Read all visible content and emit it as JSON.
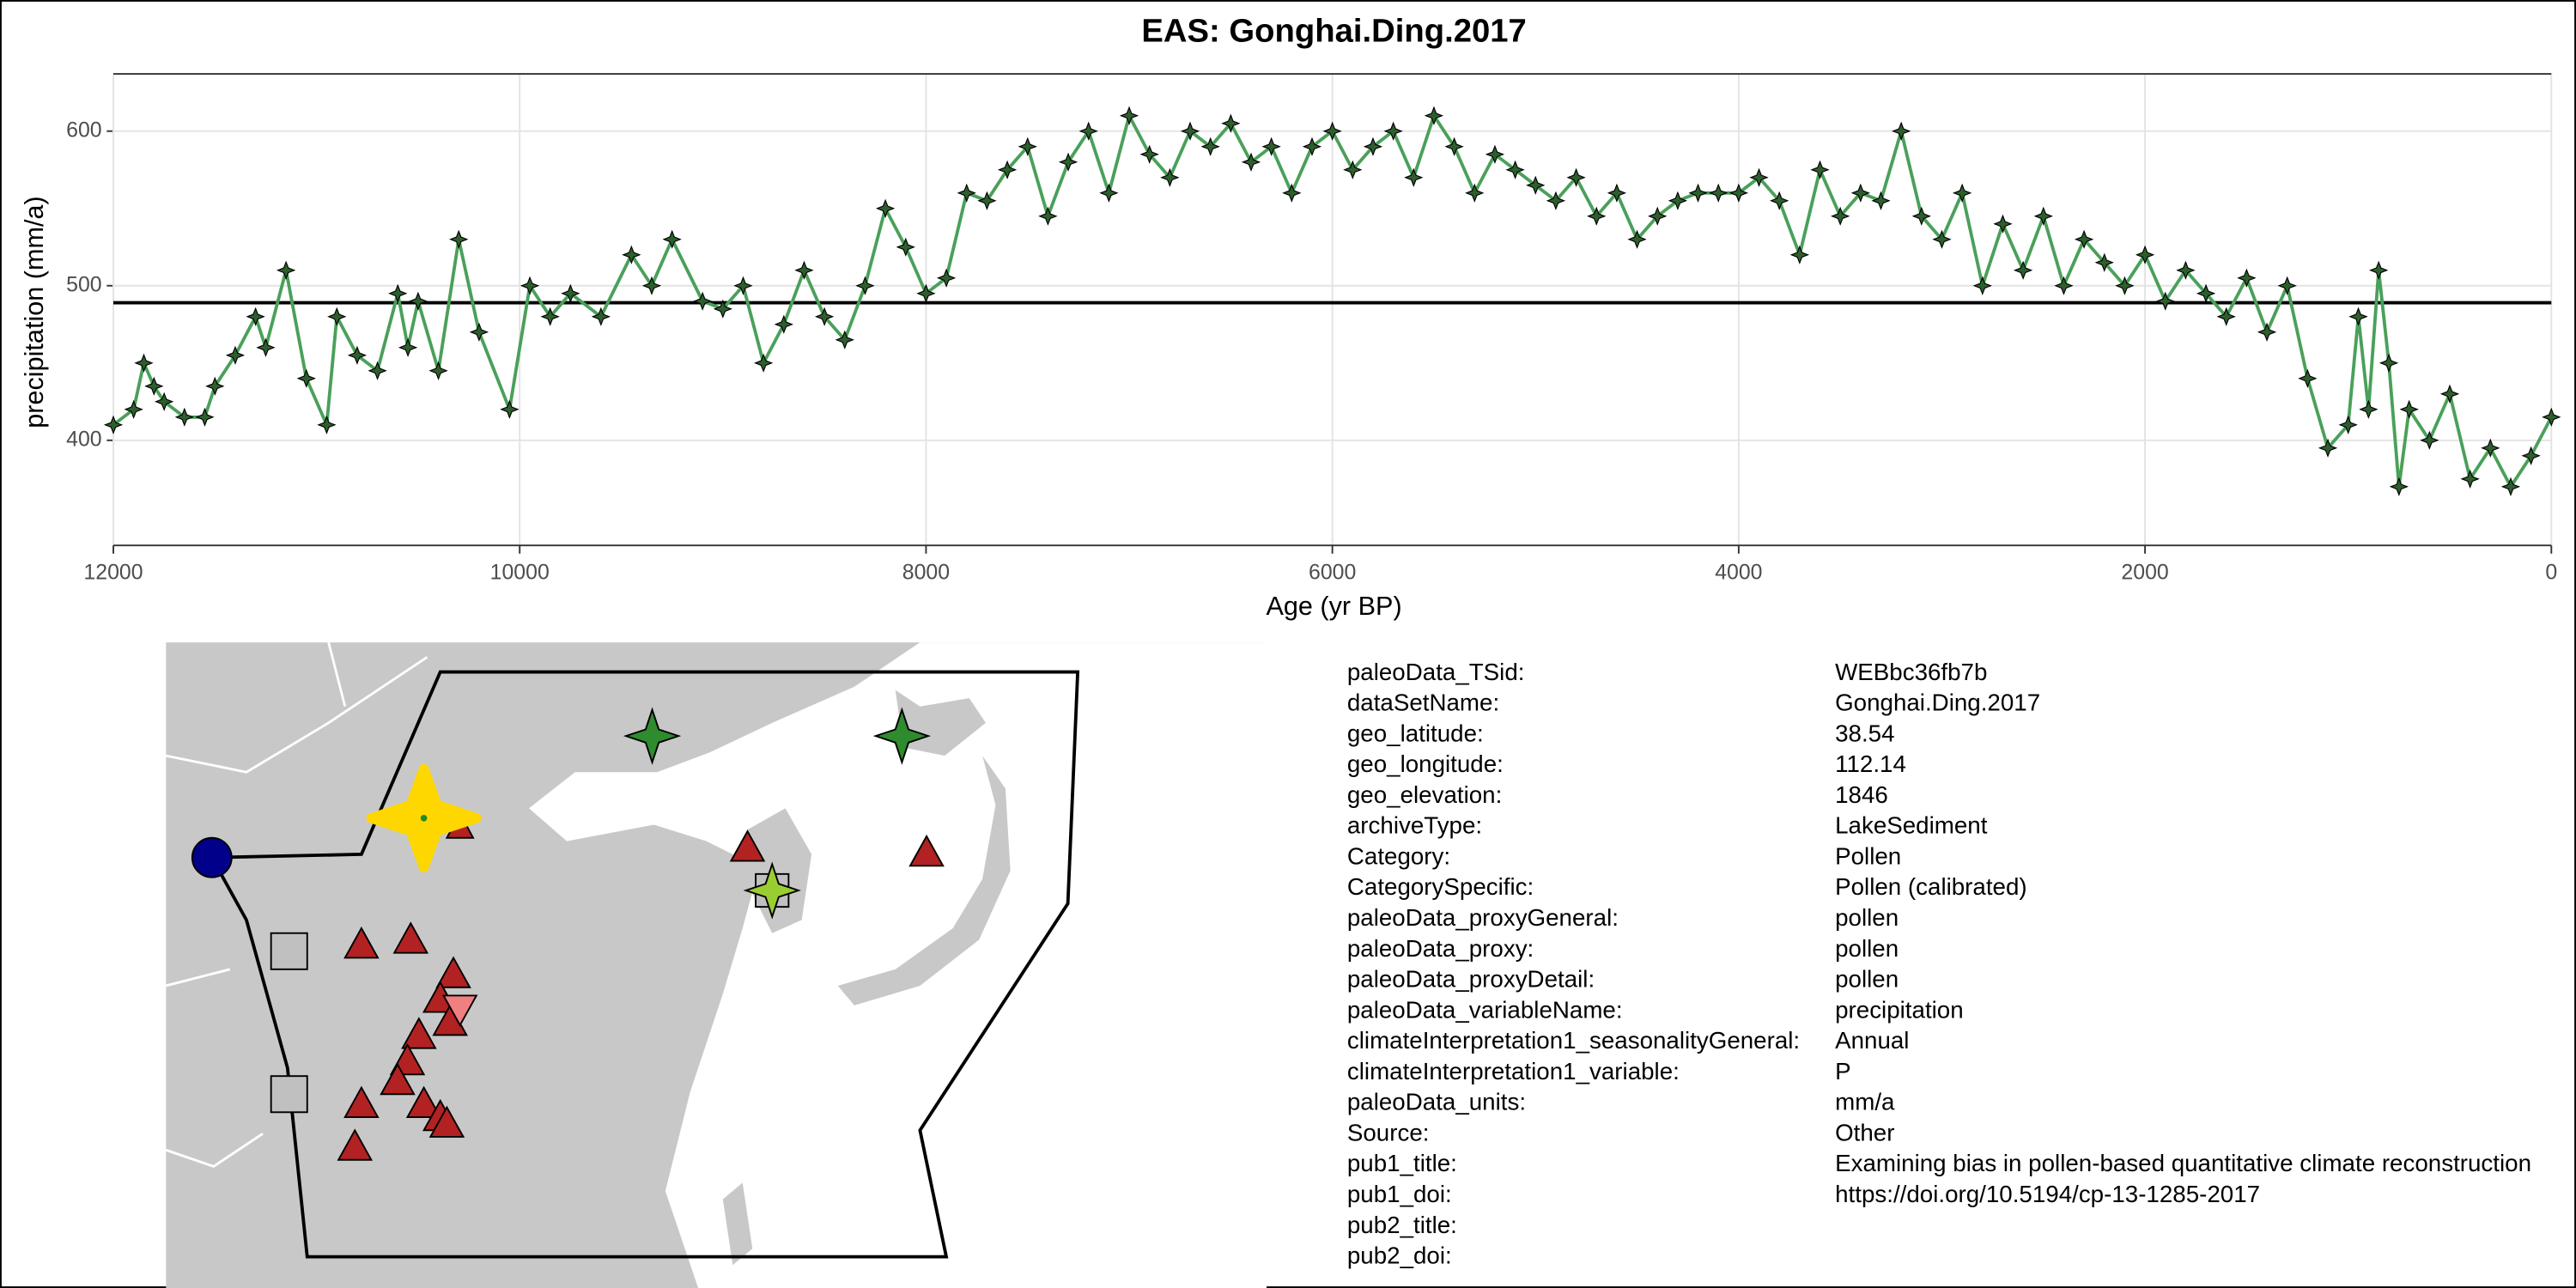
{
  "chart_data": {
    "type": "line",
    "title": "EAS: Gonghai.Ding.2017",
    "xlabel": "Age (yr BP)",
    "ylabel": "precipitation (mm/a)",
    "x": [
      12000,
      11900,
      11850,
      11800,
      11750,
      11650,
      11550,
      11500,
      11400,
      11300,
      11250,
      11150,
      11050,
      10950,
      10900,
      10800,
      10700,
      10600,
      10550,
      10500,
      10400,
      10300,
      10200,
      10050,
      9950,
      9850,
      9750,
      9600,
      9450,
      9350,
      9250,
      9100,
      9000,
      8900,
      8800,
      8700,
      8600,
      8500,
      8400,
      8300,
      8200,
      8100,
      8000,
      7900,
      7800,
      7700,
      7600,
      7500,
      7400,
      7300,
      7200,
      7100,
      7000,
      6900,
      6800,
      6700,
      6600,
      6500,
      6400,
      6300,
      6200,
      6100,
      6000,
      5900,
      5800,
      5700,
      5600,
      5500,
      5400,
      5300,
      5200,
      5100,
      5000,
      4900,
      4800,
      4700,
      4600,
      4500,
      4400,
      4300,
      4200,
      4100,
      4000,
      3900,
      3800,
      3700,
      3600,
      3500,
      3400,
      3300,
      3200,
      3100,
      3000,
      2900,
      2800,
      2700,
      2600,
      2500,
      2400,
      2300,
      2200,
      2100,
      2000,
      1900,
      1800,
      1700,
      1600,
      1500,
      1400,
      1300,
      1200,
      1100,
      1000,
      950,
      900,
      850,
      800,
      750,
      700,
      600,
      500,
      400,
      300,
      200,
      100,
      0
    ],
    "series": [
      {
        "color": "#4aa05a",
        "marker_color": "#2e5e2e",
        "values": [
          410,
          420,
          450,
          435,
          425,
          415,
          415,
          435,
          455,
          480,
          460,
          510,
          440,
          410,
          480,
          455,
          445,
          495,
          460,
          490,
          445,
          530,
          470,
          420,
          500,
          480,
          495,
          480,
          520,
          500,
          530,
          490,
          485,
          500,
          450,
          475,
          510,
          480,
          465,
          500,
          550,
          525,
          495,
          505,
          560,
          555,
          575,
          590,
          545,
          580,
          600,
          560,
          610,
          585,
          570,
          600,
          590,
          605,
          580,
          590,
          560,
          590,
          600,
          575,
          590,
          600,
          570,
          610,
          590,
          560,
          585,
          575,
          565,
          555,
          570,
          545,
          560,
          530,
          545,
          555,
          560,
          560,
          560,
          570,
          555,
          520,
          575,
          545,
          560,
          555,
          600,
          545,
          530,
          560,
          500,
          540,
          510,
          545,
          500,
          530,
          515,
          500,
          520,
          490,
          510,
          495,
          480,
          505,
          470,
          500,
          440,
          395,
          410,
          480,
          420,
          510,
          450,
          370,
          420,
          400,
          430,
          375,
          395,
          370,
          390,
          415
        ]
      }
    ],
    "reference_line": 489,
    "xlim": [
      12000,
      0
    ],
    "ylim": [
      332,
      637
    ],
    "xticks": [
      12000,
      10000,
      8000,
      6000,
      4000,
      2000,
      0
    ],
    "yticks": [
      400,
      500,
      600
    ],
    "grid": true
  },
  "metadata": [
    {
      "key": "paleoData_TSid:",
      "value": "WEBbc36fb7b"
    },
    {
      "key": "dataSetName:",
      "value": "Gonghai.Ding.2017"
    },
    {
      "key": "geo_latitude:",
      "value": "38.54"
    },
    {
      "key": "geo_longitude:",
      "value": "112.14"
    },
    {
      "key": "geo_elevation:",
      "value": "1846"
    },
    {
      "key": "archiveType:",
      "value": "LakeSediment"
    },
    {
      "key": "Category:",
      "value": "Pollen"
    },
    {
      "key": "CategorySpecific:",
      "value": "Pollen (calibrated)"
    },
    {
      "key": "paleoData_proxyGeneral:",
      "value": "pollen"
    },
    {
      "key": "paleoData_proxy:",
      "value": "pollen"
    },
    {
      "key": "paleoData_proxyDetail:",
      "value": "pollen"
    },
    {
      "key": "paleoData_variableName:",
      "value": "precipitation"
    },
    {
      "key": "climateInterpretation1_seasonalityGeneral:",
      "value": "Annual"
    },
    {
      "key": "climateInterpretation1_variable:",
      "value": "P"
    },
    {
      "key": "paleoData_units:",
      "value": "mm/a"
    },
    {
      "key": "Source:",
      "value": "Other"
    },
    {
      "key": "pub1_title:",
      "value": "Examining bias in pollen-based quantitative climate reconstruction"
    },
    {
      "key": "pub1_doi:",
      "value": "https://doi.org/10.5194/cp-13-1285-2017"
    },
    {
      "key": "pub2_title:"
    },
    {
      "key": "pub2_doi:"
    }
  ]
}
